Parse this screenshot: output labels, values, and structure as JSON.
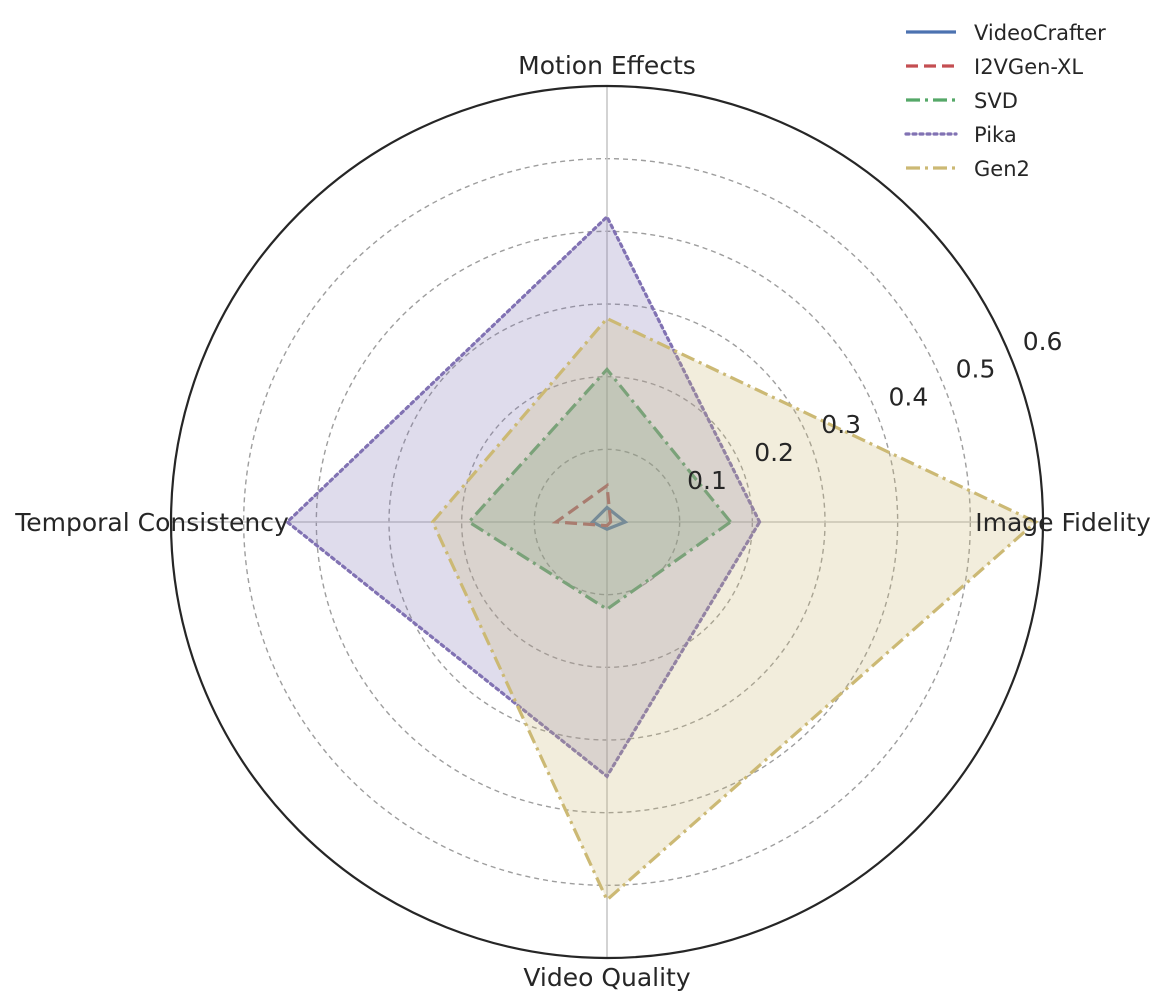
{
  "chart_data": {
    "type": "radar",
    "axes": [
      "Image Fidelity",
      "Motion Effects",
      "Temporal Consistency",
      "Video Quality"
    ],
    "rlim": [
      0,
      0.6
    ],
    "r_ticks": [
      0.1,
      0.2,
      0.3,
      0.4,
      0.5,
      0.6
    ],
    "r_tick_labels": [
      "0.1",
      "0.2",
      "0.3",
      "0.4",
      "0.5",
      "0.6"
    ],
    "grid": true,
    "legend_position": "top-right",
    "series": [
      {
        "name": "VideoCrafter",
        "values": [
          0.025,
          0.02,
          0.02,
          0.01
        ],
        "color": "#4c72b0",
        "dash": "solid",
        "fill": false
      },
      {
        "name": "I2VGen-XL",
        "values": [
          0.005,
          0.05,
          0.07,
          0.005
        ],
        "color": "#c44e52",
        "dash": "dashed",
        "fill": false
      },
      {
        "name": "SVD",
        "values": [
          0.17,
          0.21,
          0.19,
          0.12
        ],
        "color": "#55a868",
        "dash": "dashdot",
        "fill": true
      },
      {
        "name": "Pika",
        "values": [
          0.21,
          0.42,
          0.44,
          0.35
        ],
        "color": "#8172b3",
        "dash": "dotted",
        "fill": true
      },
      {
        "name": "Gen2",
        "values": [
          0.59,
          0.28,
          0.24,
          0.52
        ],
        "color": "#ccb974",
        "dash": "dashdot",
        "fill": true
      }
    ]
  }
}
